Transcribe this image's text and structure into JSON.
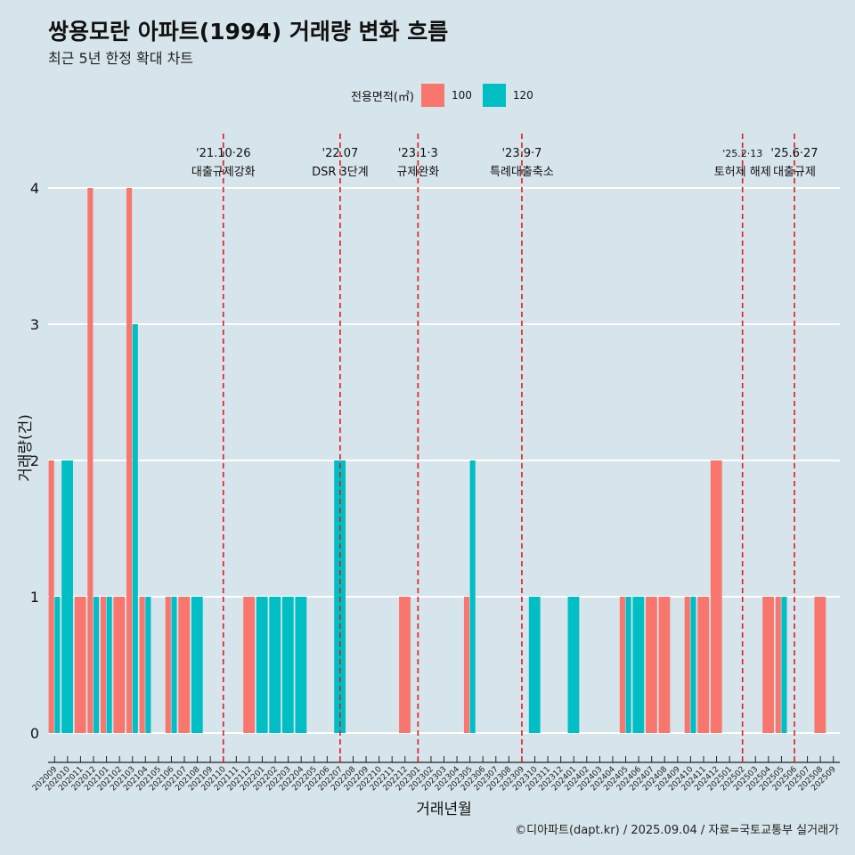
{
  "title": "쌍용모란 아파트(1994) 거래량 변화 흐름",
  "subtitle": "최근 5년 한정 확대 차트",
  "legend": {
    "title": "전용면적(㎡)",
    "items": [
      {
        "label": "100",
        "color": "#f8766d"
      },
      {
        "label": "120",
        "color": "#00bfc4"
      }
    ]
  },
  "caption": "©디아파트(dapt.kr) / 2025.09.04 / 자료=국토교통부 실거래가",
  "chart_data": {
    "type": "bar",
    "xlabel": "거래년월",
    "ylabel": "거래량(건)",
    "ylim": [
      0,
      4
    ],
    "yticks": [
      0,
      1,
      2,
      3,
      4
    ],
    "grid": true,
    "legend_position": "top",
    "categories": [
      "202009",
      "202010",
      "202011",
      "202012",
      "202101",
      "202102",
      "202103",
      "202104",
      "202105",
      "202106",
      "202107",
      "202108",
      "202109",
      "202110",
      "202111",
      "202112",
      "202201",
      "202202",
      "202203",
      "202204",
      "202205",
      "202206",
      "202207",
      "202208",
      "202209",
      "202210",
      "202211",
      "202212",
      "202301",
      "202302",
      "202303",
      "202304",
      "202305",
      "202306",
      "202307",
      "202308",
      "202309",
      "202310",
      "202311",
      "202312",
      "202401",
      "202402",
      "202403",
      "202404",
      "202405",
      "202406",
      "202407",
      "202408",
      "202409",
      "202410",
      "202411",
      "202412",
      "202501",
      "202502",
      "202503",
      "202504",
      "202505",
      "202506",
      "202507",
      "202508",
      "202509"
    ],
    "series": [
      {
        "name": "100",
        "color": "#f8766d",
        "values": [
          2,
          0,
          1,
          4,
          1,
          1,
          4,
          1,
          0,
          1,
          1,
          0,
          0,
          0,
          0,
          1,
          0,
          0,
          0,
          0,
          0,
          0,
          0,
          0,
          0,
          0,
          0,
          1,
          0,
          0,
          0,
          0,
          1,
          0,
          0,
          0,
          0,
          0,
          0,
          0,
          0,
          0,
          0,
          0,
          1,
          0,
          1,
          1,
          0,
          1,
          1,
          2,
          0,
          0,
          0,
          1,
          1,
          0,
          0,
          1,
          0
        ]
      },
      {
        "name": "120",
        "color": "#00bfc4",
        "values": [
          1,
          2,
          0,
          1,
          1,
          0,
          3,
          1,
          0,
          1,
          0,
          1,
          0,
          0,
          0,
          0,
          1,
          1,
          1,
          1,
          0,
          0,
          2,
          0,
          0,
          0,
          0,
          0,
          0,
          0,
          0,
          0,
          2,
          0,
          0,
          0,
          0,
          1,
          0,
          0,
          1,
          0,
          0,
          0,
          1,
          1,
          0,
          0,
          0,
          1,
          0,
          0,
          0,
          0,
          0,
          0,
          1,
          0,
          0,
          0,
          0
        ]
      }
    ],
    "annotations": [
      {
        "month": "202110",
        "date": "'21.10·26",
        "label": "대출규제강화"
      },
      {
        "month": "202207",
        "date": "'22.07",
        "label": "DSR 3단계"
      },
      {
        "month": "202301",
        "date": "'23.1·3",
        "label": "규제완화"
      },
      {
        "month": "202309",
        "date": "'23.9·7",
        "label": "특례대출축소"
      },
      {
        "month": "202502",
        "date": "'25.2·13",
        "label": "토허제 해제"
      },
      {
        "month": "202506",
        "date": "'25.6·27",
        "label": "대출규제"
      }
    ]
  }
}
